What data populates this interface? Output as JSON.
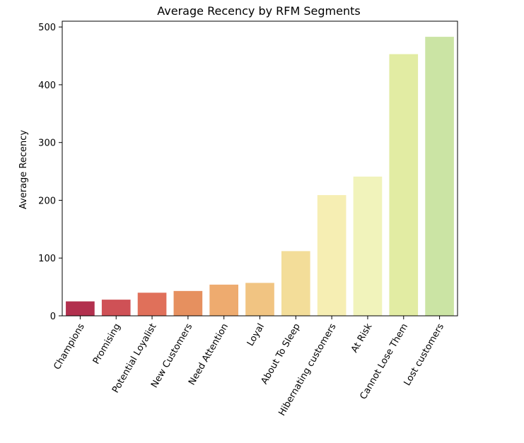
{
  "chart_data": {
    "type": "bar",
    "title": "Average Recency by RFM Segments",
    "xlabel": "",
    "ylabel": "Average Recency",
    "ylim": [
      0,
      510
    ],
    "yticks": [
      0,
      100,
      200,
      300,
      400,
      500
    ],
    "grid": false,
    "legend": "none",
    "categories": [
      "Champions",
      "Promising",
      "Potential Loyalist",
      "New Customers",
      "Need Attention",
      "Loyal",
      "About To Sleep",
      "Hibernating customers",
      "At Risk",
      "Cannot Lose Them",
      "Lost customers"
    ],
    "values": [
      25,
      28,
      40,
      43,
      54,
      57,
      112,
      209,
      241,
      453,
      483
    ],
    "colors": [
      "#b2304e",
      "#cf5156",
      "#e0705a",
      "#e6905f",
      "#eeab6f",
      "#f1c482",
      "#f3dd99",
      "#f6eeb3",
      "#f1f3bb",
      "#e2ecA3",
      "#cbe4a4"
    ]
  }
}
